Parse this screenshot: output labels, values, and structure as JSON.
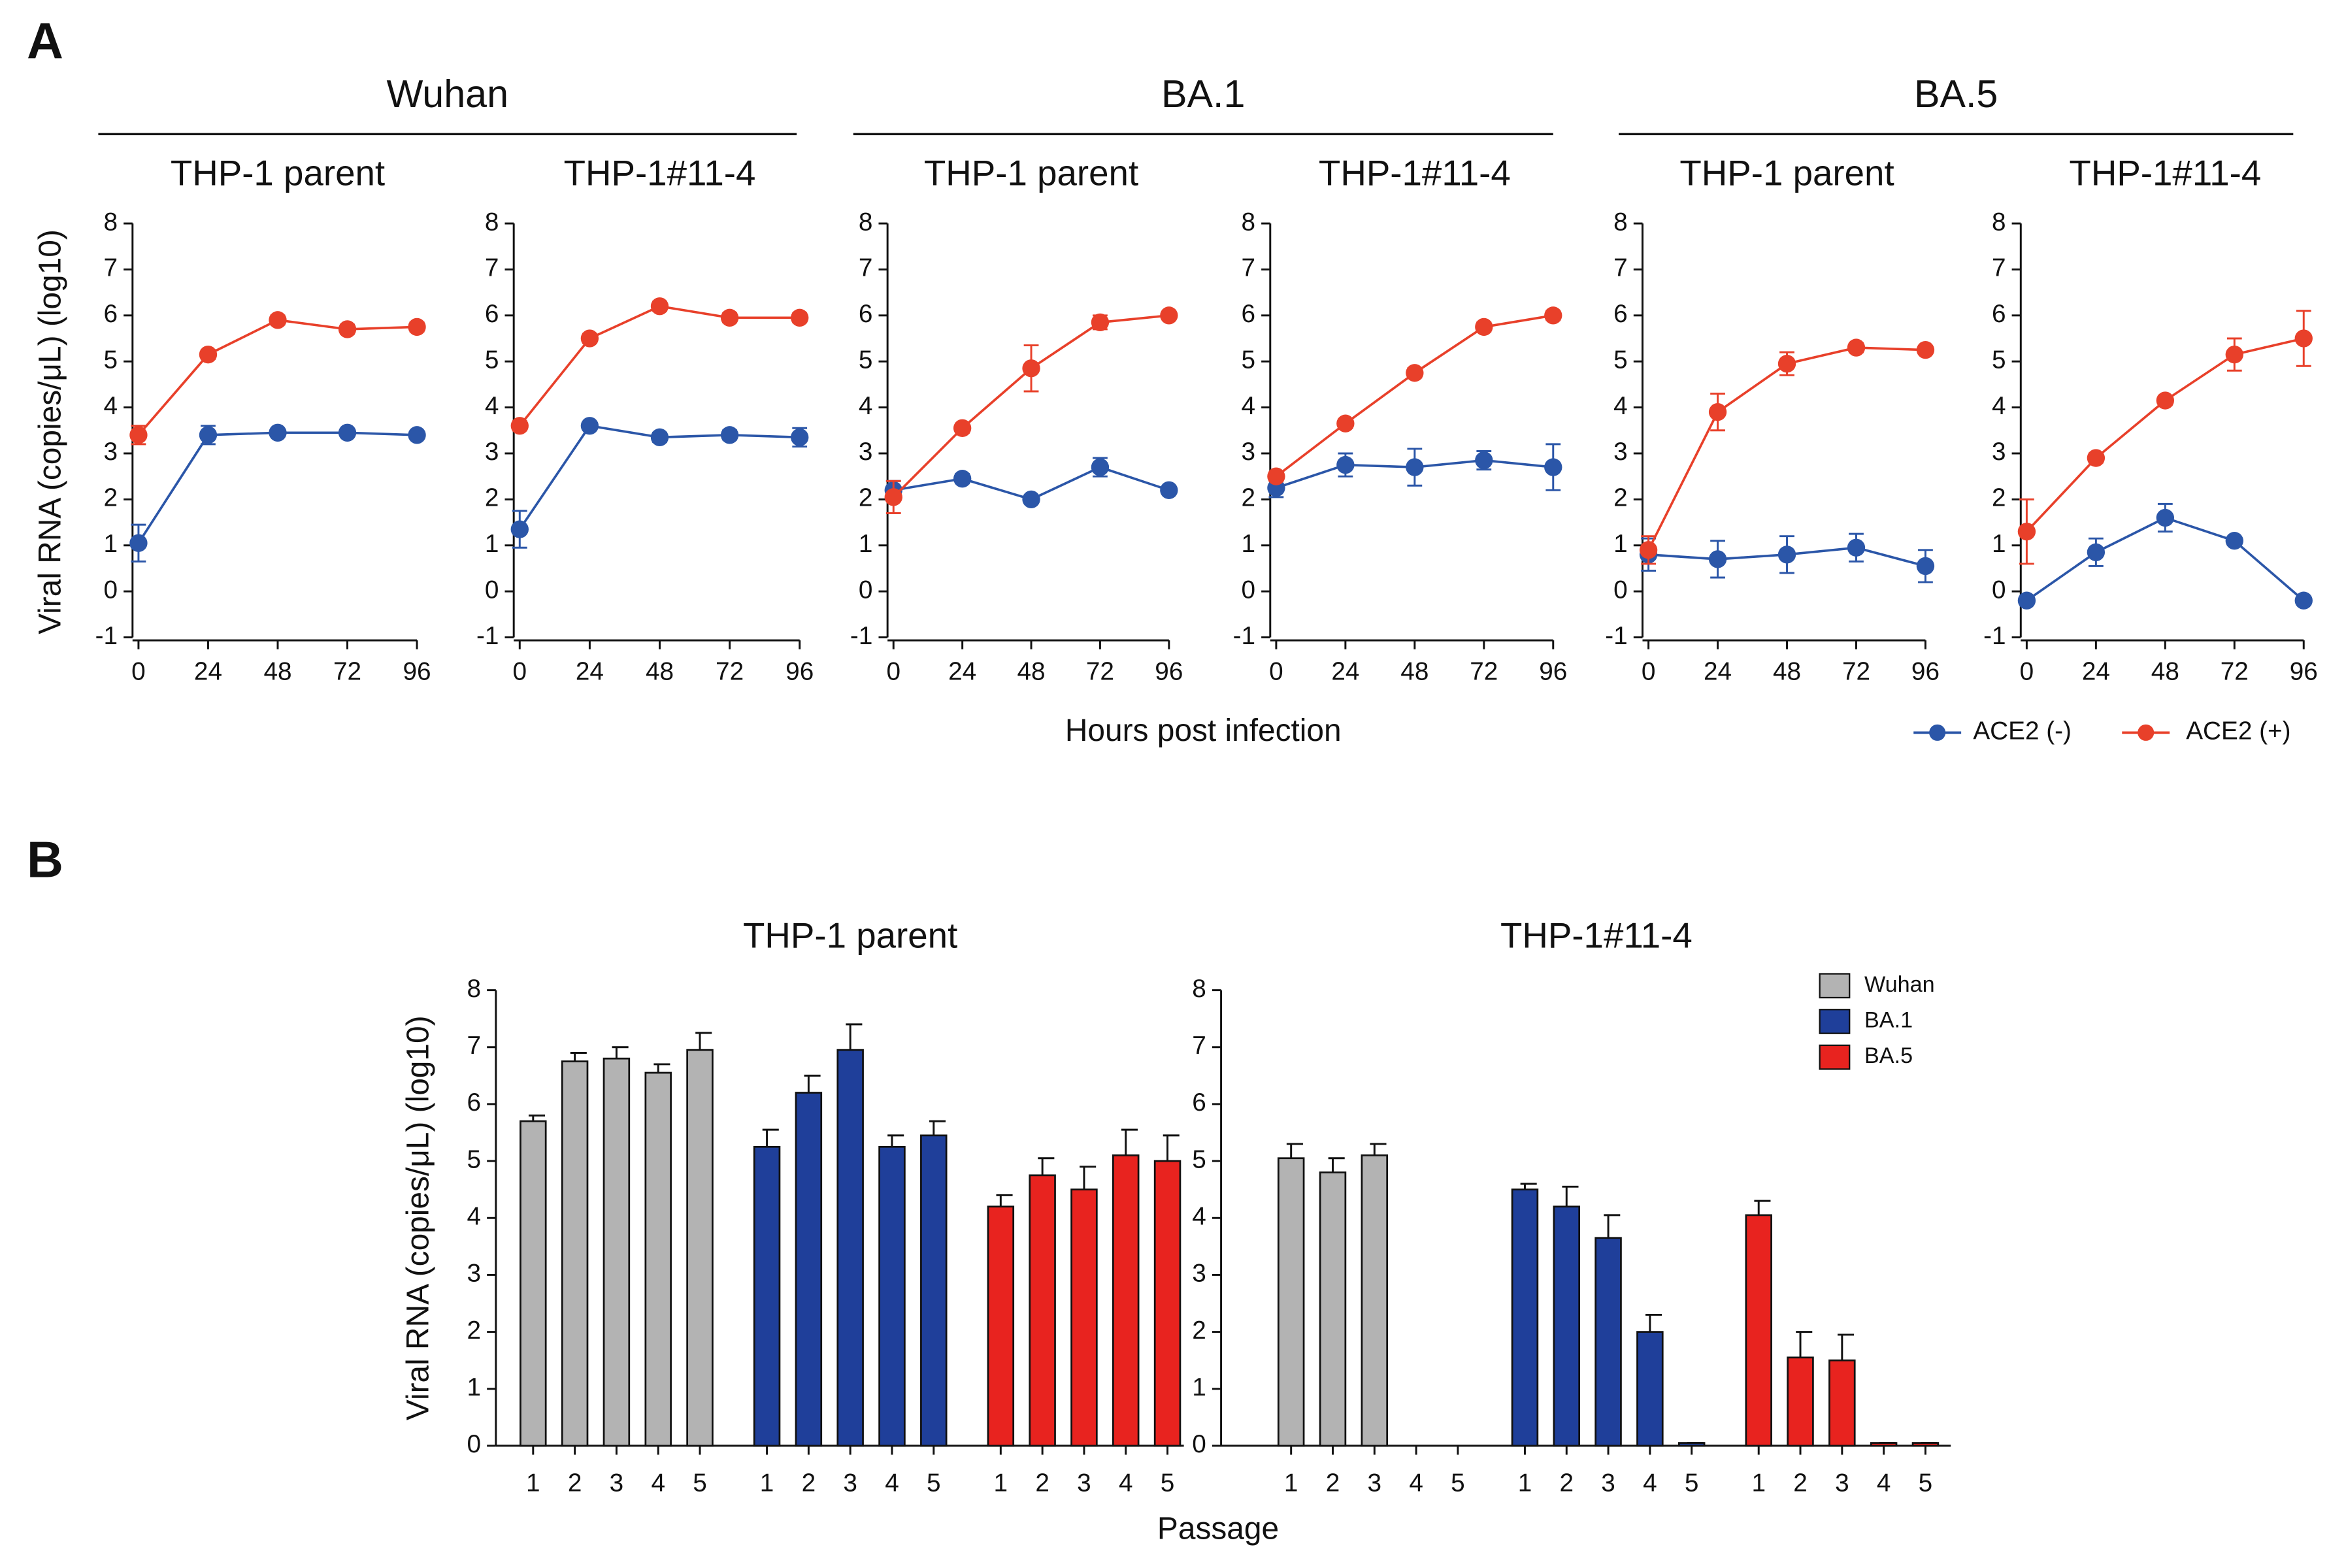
{
  "panel_a": {
    "label": "A",
    "groups": [
      "Wuhan",
      "BA.1",
      "BA.5"
    ],
    "ylabel": "Viral RNA (copies/μL) (log10)",
    "xlabel": "Hours post infection"
  },
  "panel_b": {
    "label": "B",
    "ylabel": "Viral RNA (copies/μL) (log10)",
    "xlabel": "Passage"
  },
  "chart_data": [
    {
      "type": "line",
      "title": "THP-1 parent",
      "x": [
        0,
        24,
        48,
        72,
        96
      ],
      "xlim": [
        0,
        96
      ],
      "xticks": [
        0,
        24,
        48,
        72,
        96
      ],
      "ylim": [
        -1,
        8
      ],
      "yticks": [
        -1,
        0,
        1,
        2,
        3,
        4,
        5,
        6,
        7,
        8
      ],
      "series": [
        {
          "name": "ACE2 (-)",
          "color": "#2b56a8",
          "values": [
            1.05,
            3.4,
            3.45,
            3.45,
            3.4
          ],
          "errors": [
            0.4,
            0.2,
            0.05,
            0.05,
            0.05
          ]
        },
        {
          "name": "ACE2 (+)",
          "color": "#e8402a",
          "values": [
            3.4,
            5.15,
            5.9,
            5.7,
            5.75
          ],
          "errors": [
            0.2,
            0.1,
            0.1,
            0.1,
            0.1
          ]
        }
      ]
    },
    {
      "type": "line",
      "title": "THP-1#11-4",
      "x": [
        0,
        24,
        48,
        72,
        96
      ],
      "xlim": [
        0,
        96
      ],
      "xticks": [
        0,
        24,
        48,
        72,
        96
      ],
      "ylim": [
        -1,
        8
      ],
      "yticks": [
        -1,
        0,
        1,
        2,
        3,
        4,
        5,
        6,
        7,
        8
      ],
      "series": [
        {
          "name": "ACE2 (-)",
          "color": "#2b56a8",
          "values": [
            1.35,
            3.6,
            3.35,
            3.4,
            3.35
          ],
          "errors": [
            0.4,
            0.05,
            0.1,
            0.1,
            0.2
          ]
        },
        {
          "name": "ACE2 (+)",
          "color": "#e8402a",
          "values": [
            3.6,
            5.5,
            6.2,
            5.95,
            5.95
          ],
          "errors": [
            0.1,
            0.1,
            0.1,
            0.1,
            0.1
          ]
        }
      ]
    },
    {
      "type": "line",
      "title": "THP-1 parent",
      "x": [
        0,
        24,
        48,
        72,
        96
      ],
      "xlim": [
        0,
        96
      ],
      "xticks": [
        0,
        24,
        48,
        72,
        96
      ],
      "ylim": [
        -1,
        8
      ],
      "yticks": [
        -1,
        0,
        1,
        2,
        3,
        4,
        5,
        6,
        7,
        8
      ],
      "series": [
        {
          "name": "ACE2 (-)",
          "color": "#2b56a8",
          "values": [
            2.2,
            2.45,
            2.0,
            2.7,
            2.2
          ],
          "errors": [
            0.2,
            0.1,
            0.05,
            0.2,
            0.05
          ]
        },
        {
          "name": "ACE2 (+)",
          "color": "#e8402a",
          "values": [
            2.05,
            3.55,
            4.85,
            5.85,
            6.0
          ],
          "errors": [
            0.35,
            0.1,
            0.5,
            0.15,
            0.05
          ]
        }
      ]
    },
    {
      "type": "line",
      "title": "THP-1#11-4",
      "x": [
        0,
        24,
        48,
        72,
        96
      ],
      "xlim": [
        0,
        96
      ],
      "xticks": [
        0,
        24,
        48,
        72,
        96
      ],
      "ylim": [
        -1,
        8
      ],
      "yticks": [
        -1,
        0,
        1,
        2,
        3,
        4,
        5,
        6,
        7,
        8
      ],
      "series": [
        {
          "name": "ACE2 (-)",
          "color": "#2b56a8",
          "values": [
            2.25,
            2.75,
            2.7,
            2.85,
            2.7
          ],
          "errors": [
            0.2,
            0.25,
            0.4,
            0.2,
            0.5
          ]
        },
        {
          "name": "ACE2 (+)",
          "color": "#e8402a",
          "values": [
            2.5,
            3.65,
            4.75,
            5.75,
            6.0
          ],
          "errors": [
            0.1,
            0.1,
            0.1,
            0.1,
            0.1
          ]
        }
      ]
    },
    {
      "type": "line",
      "title": "THP-1 parent",
      "x": [
        0,
        24,
        48,
        72,
        96
      ],
      "xlim": [
        0,
        96
      ],
      "xticks": [
        0,
        24,
        48,
        72,
        96
      ],
      "ylim": [
        -1,
        8
      ],
      "yticks": [
        -1,
        0,
        1,
        2,
        3,
        4,
        5,
        6,
        7,
        8
      ],
      "series": [
        {
          "name": "ACE2 (-)",
          "color": "#2b56a8",
          "values": [
            0.8,
            0.7,
            0.8,
            0.95,
            0.55
          ],
          "errors": [
            0.35,
            0.4,
            0.4,
            0.3,
            0.35
          ]
        },
        {
          "name": "ACE2 (+)",
          "color": "#e8402a",
          "values": [
            0.9,
            3.9,
            4.95,
            5.3,
            5.25
          ],
          "errors": [
            0.3,
            0.4,
            0.25,
            0.1,
            0.05
          ]
        }
      ]
    },
    {
      "type": "line",
      "title": "THP-1#11-4",
      "x": [
        0,
        24,
        48,
        72,
        96
      ],
      "xlim": [
        0,
        96
      ],
      "xticks": [
        0,
        24,
        48,
        72,
        96
      ],
      "ylim": [
        -1,
        8
      ],
      "yticks": [
        -1,
        0,
        1,
        2,
        3,
        4,
        5,
        6,
        7,
        8
      ],
      "legend": "below",
      "series": [
        {
          "name": "ACE2 (-)",
          "color": "#2b56a8",
          "values": [
            -0.2,
            0.85,
            1.6,
            1.1,
            -0.2
          ],
          "errors": [
            0.05,
            0.3,
            0.3,
            0.05,
            0.05
          ]
        },
        {
          "name": "ACE2 (+)",
          "color": "#e8402a",
          "values": [
            1.3,
            2.9,
            4.15,
            5.15,
            5.5
          ],
          "errors": [
            0.7,
            0.1,
            0.1,
            0.35,
            0.6
          ]
        }
      ]
    },
    {
      "type": "bar",
      "title": "THP-1 parent",
      "categories": [
        "1",
        "2",
        "3",
        "4",
        "5"
      ],
      "ylim": [
        0,
        8
      ],
      "yticks": [
        0,
        1,
        2,
        3,
        4,
        5,
        6,
        7,
        8
      ],
      "series": [
        {
          "name": "Wuhan",
          "color": "#b3b3b3",
          "values": [
            5.7,
            6.75,
            6.8,
            6.55,
            6.95
          ],
          "errors": [
            0.1,
            0.15,
            0.2,
            0.15,
            0.3
          ]
        },
        {
          "name": "BA.1",
          "color": "#1f3f9a",
          "values": [
            5.25,
            6.2,
            6.95,
            5.25,
            5.45
          ],
          "errors": [
            0.3,
            0.3,
            0.45,
            0.2,
            0.25
          ]
        },
        {
          "name": "BA.5",
          "color": "#e8231f",
          "values": [
            4.2,
            4.75,
            4.5,
            5.1,
            5.0
          ],
          "errors": [
            0.2,
            0.3,
            0.4,
            0.45,
            0.45
          ]
        }
      ]
    },
    {
      "type": "bar",
      "title": "THP-1#11-4",
      "categories": [
        "1",
        "2",
        "3",
        "4",
        "5"
      ],
      "ylim": [
        0,
        8
      ],
      "yticks": [
        0,
        1,
        2,
        3,
        4,
        5,
        6,
        7,
        8
      ],
      "legend": "upper right",
      "series": [
        {
          "name": "Wuhan",
          "color": "#b3b3b3",
          "values": [
            5.05,
            4.8,
            5.1,
            null,
            null
          ],
          "errors": [
            0.25,
            0.25,
            0.2,
            null,
            null
          ]
        },
        {
          "name": "BA.1",
          "color": "#1f3f9a",
          "values": [
            4.5,
            4.2,
            3.65,
            2.0,
            0.05
          ],
          "errors": [
            0.1,
            0.35,
            0.4,
            0.3,
            0
          ]
        },
        {
          "name": "BA.5",
          "color": "#e8231f",
          "values": [
            4.05,
            1.55,
            1.5,
            0.05,
            0.05
          ],
          "errors": [
            0.25,
            0.45,
            0.45,
            0,
            0
          ]
        }
      ]
    }
  ]
}
